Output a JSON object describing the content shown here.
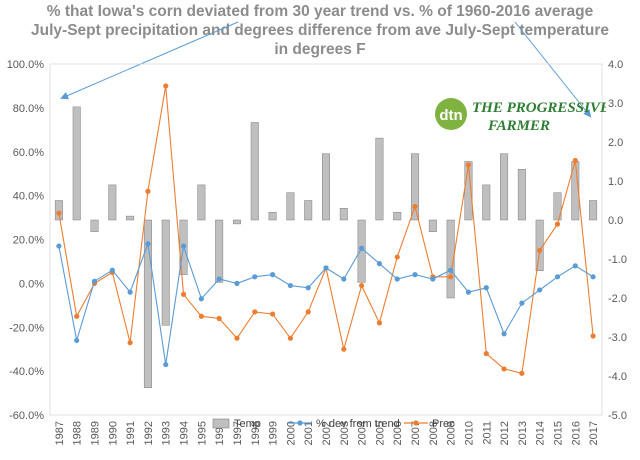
{
  "title_lines": [
    "% that Iowa's corn deviated from 30 year trend vs. % of 1960-2016 average",
    "July-Sept precipitation and degrees difference from ave July-Sept temperature",
    "in degrees F"
  ],
  "logo": {
    "dtn": "dtn",
    "brand_line1": "THE PROGRESSIVE",
    "brand_line2": "FARMER"
  },
  "colors": {
    "temp_bar": "#bfbfbf",
    "temp_bar_edge": "#7f7f7f",
    "dev_line": "#5b9bd5",
    "prec_line": "#ed7d31",
    "title": "#8c8c8c",
    "arrow": "#5b9bd5"
  },
  "chart_data": {
    "type": "bar+line",
    "categories": [
      "1987",
      "1988",
      "1989",
      "1990",
      "1991",
      "1992",
      "1993",
      "1994",
      "1995",
      "1996",
      "1997",
      "1998",
      "1999",
      "2000",
      "2001",
      "2002",
      "2003",
      "2004",
      "2005",
      "2006",
      "2007",
      "2008",
      "2009",
      "2010",
      "2011",
      "2012",
      "2013",
      "2014",
      "2015",
      "2016",
      "2017"
    ],
    "left_axis": {
      "min": -60,
      "max": 100,
      "step": 20,
      "tick_labels": [
        "-60.0%",
        "-40.0%",
        "-20.0%",
        "0.0%",
        "20.0%",
        "40.0%",
        "60.0%",
        "80.0%",
        "100.0%"
      ]
    },
    "right_axis": {
      "min": -5,
      "max": 4,
      "step": 1,
      "tick_labels": [
        "-5.0",
        "-4.0",
        "-3.0",
        "-2.0",
        "-1.0",
        "0.0",
        "1.0",
        "2.0",
        "3.0",
        "4.0"
      ]
    },
    "series": [
      {
        "name": "Temp",
        "type": "bar",
        "axis": "right",
        "values": [
          0.5,
          2.9,
          -0.3,
          0.9,
          0.1,
          -4.3,
          -2.7,
          -1.4,
          0.9,
          -1.6,
          -0.1,
          2.5,
          0.2,
          0.7,
          0.5,
          1.7,
          0.3,
          -1.6,
          2.1,
          0.2,
          1.7,
          -0.3,
          -2.0,
          1.5,
          0.9,
          1.7,
          1.3,
          -1.3,
          0.7,
          1.5,
          0.5
        ]
      },
      {
        "name": "% dev from trend",
        "type": "line",
        "axis": "left",
        "values": [
          17,
          -26,
          1,
          6,
          -4,
          18,
          -37,
          17,
          -7,
          2,
          0,
          3,
          4,
          -1,
          -2,
          7,
          2,
          16,
          9,
          2,
          4,
          2,
          6,
          -4,
          -2,
          -23,
          -9,
          -3,
          3,
          8,
          3
        ]
      },
      {
        "name": "Prec",
        "type": "line",
        "axis": "left",
        "values": [
          32,
          -15,
          0,
          5,
          -27,
          42,
          90,
          -5,
          -15,
          -16,
          -25,
          -13,
          -14,
          -25,
          -13,
          7,
          -30,
          -1,
          -18,
          12,
          35,
          3,
          3,
          54,
          -32,
          -39,
          -41,
          15,
          27,
          56,
          -24
        ]
      }
    ],
    "legend": {
      "position": "bottom"
    }
  }
}
